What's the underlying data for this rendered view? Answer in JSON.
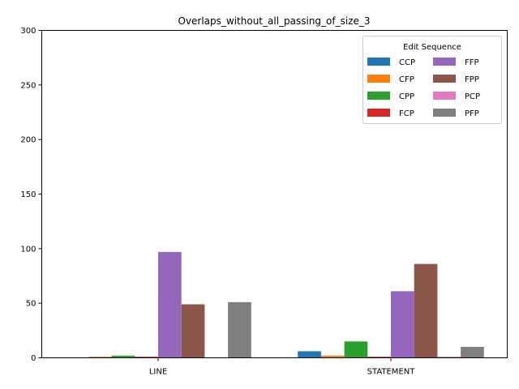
{
  "chart_data": {
    "type": "bar",
    "title": "Overlaps_without_all_passing_of_size_3",
    "xlabel": "",
    "ylabel": "",
    "categories": [
      "LINE",
      "STATEMENT"
    ],
    "ylim": [
      0,
      300
    ],
    "yticks": [
      0,
      50,
      100,
      150,
      200,
      250,
      300
    ],
    "grid": false,
    "legend": {
      "title": "Edit Sequence",
      "placement": "top-right",
      "columns": 2
    },
    "series": [
      {
        "name": "CCP",
        "color": "#1f77b4",
        "values": [
          0,
          6
        ]
      },
      {
        "name": "CFP",
        "color": "#ff7f0e",
        "values": [
          1,
          2
        ]
      },
      {
        "name": "CPP",
        "color": "#2ca02c",
        "values": [
          2,
          15
        ]
      },
      {
        "name": "FCP",
        "color": "#d62728",
        "values": [
          1,
          1
        ]
      },
      {
        "name": "FFP",
        "color": "#9467bd",
        "values": [
          97,
          61
        ]
      },
      {
        "name": "FPP",
        "color": "#8c564b",
        "values": [
          49,
          86
        ]
      },
      {
        "name": "PCP",
        "color": "#e377c2",
        "values": [
          0,
          1
        ]
      },
      {
        "name": "PFP",
        "color": "#7f7f7f",
        "values": [
          51,
          10
        ]
      }
    ]
  }
}
